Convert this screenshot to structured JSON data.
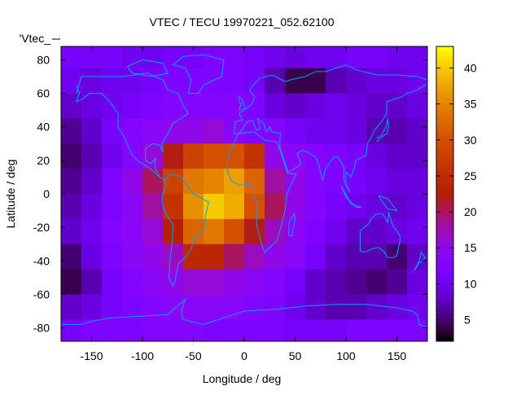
{
  "chart_data": {
    "type": "heatmap",
    "title": "VTEC / TECU 19970221_052.62100",
    "xlabel": "Longitude / deg",
    "ylabel": "Latitude / deg",
    "key_label": "'Vtec_",
    "xlim": [
      -180,
      180
    ],
    "ylim": [
      -88,
      88
    ],
    "xticks": [
      -150,
      -100,
      -50,
      0,
      50,
      100,
      150
    ],
    "yticks": [
      -80,
      -60,
      -40,
      -20,
      0,
      20,
      40,
      60,
      80
    ],
    "cbrange": [
      2,
      43
    ],
    "cbticks": [
      5,
      10,
      15,
      20,
      25,
      30,
      35,
      40
    ],
    "palette": "rgbformulae 7,5,15",
    "coastline_color": "#00a0ff",
    "grid_lon_step": 20,
    "grid_lat_step": 15,
    "grid_lon_start": -180,
    "grid_lat_top": 90,
    "values": [
      [
        11,
        11,
        11,
        10,
        10,
        11,
        11,
        12,
        12,
        11,
        10,
        9,
        10,
        10,
        11,
        11,
        10,
        10
      ],
      [
        10,
        9,
        10,
        10,
        11,
        12,
        12,
        12,
        12,
        11,
        7,
        4,
        4,
        7,
        8,
        9,
        9,
        10
      ],
      [
        8,
        9,
        10,
        11,
        12,
        13,
        13,
        13,
        13,
        12,
        9,
        8,
        9,
        10,
        9,
        8,
        8,
        9
      ],
      [
        6,
        8,
        11,
        13,
        14,
        15,
        15,
        16,
        14,
        13,
        13,
        11,
        10,
        10,
        9,
        7,
        7,
        8
      ],
      [
        5,
        7,
        10,
        13,
        16,
        22,
        28,
        30,
        30,
        26,
        15,
        14,
        13,
        12,
        11,
        9,
        8,
        8
      ],
      [
        6,
        8,
        12,
        15,
        20,
        28,
        34,
        35,
        37,
        32,
        18,
        15,
        13,
        12,
        11,
        10,
        9,
        9
      ],
      [
        7,
        9,
        12,
        14,
        18,
        26,
        36,
        40,
        38,
        30,
        20,
        15,
        13,
        11,
        10,
        9,
        8,
        9
      ],
      [
        8,
        10,
        13,
        14,
        16,
        23,
        32,
        34,
        30,
        22,
        17,
        14,
        12,
        10,
        8,
        8,
        9,
        10
      ],
      [
        5,
        9,
        12,
        14,
        15,
        17,
        24,
        24,
        20,
        17,
        15,
        14,
        11,
        8,
        7,
        7,
        5,
        8
      ],
      [
        4,
        7,
        11,
        13,
        14,
        15,
        16,
        16,
        15,
        14,
        13,
        11,
        8,
        7,
        6,
        5,
        6,
        9
      ],
      [
        8,
        9,
        11,
        12,
        13,
        14,
        14,
        14,
        14,
        13,
        12,
        10,
        8,
        7,
        7,
        8,
        9,
        10
      ],
      [
        11,
        12,
        12,
        12,
        13,
        13,
        13,
        12,
        12,
        12,
        12,
        11,
        11,
        11,
        12,
        12,
        12,
        12
      ]
    ],
    "coastlines": [
      [
        [
          -165,
          60
        ],
        [
          -160,
          70
        ],
        [
          -140,
          70
        ],
        [
          -120,
          70
        ],
        [
          -95,
          72
        ],
        [
          -80,
          68
        ],
        [
          -75,
          62
        ],
        [
          -65,
          60
        ],
        [
          -60,
          53
        ],
        [
          -55,
          48
        ],
        [
          -65,
          44
        ],
        [
          -70,
          42
        ],
        [
          -76,
          35
        ],
        [
          -81,
          30
        ],
        [
          -80,
          25
        ],
        [
          -83,
          29
        ],
        [
          -90,
          30
        ],
        [
          -97,
          27
        ],
        [
          -97,
          20
        ],
        [
          -92,
          18
        ],
        [
          -87,
          21
        ],
        [
          -88,
          16
        ],
        [
          -83,
          10
        ],
        [
          -78,
          8
        ],
        [
          -85,
          11
        ],
        [
          -92,
          15
        ],
        [
          -105,
          20
        ],
        [
          -110,
          23
        ],
        [
          -115,
          30
        ],
        [
          -118,
          34
        ],
        [
          -124,
          40
        ],
        [
          -124,
          48
        ],
        [
          -132,
          55
        ],
        [
          -140,
          60
        ],
        [
          -152,
          60
        ],
        [
          -158,
          57
        ],
        [
          -165,
          55
        ],
        [
          -162,
          60
        ],
        [
          -165,
          65
        ]
      ],
      [
        [
          -55,
          60
        ],
        [
          -45,
          60
        ],
        [
          -40,
          65
        ],
        [
          -22,
          70
        ],
        [
          -20,
          80
        ],
        [
          -40,
          83
        ],
        [
          -60,
          82
        ],
        [
          -70,
          77
        ],
        [
          -58,
          75
        ],
        [
          -52,
          68
        ],
        [
          -55,
          60
        ]
      ],
      [
        [
          -90,
          70
        ],
        [
          -75,
          72
        ],
        [
          -80,
          78
        ],
        [
          -100,
          80
        ],
        [
          -115,
          76
        ],
        [
          -110,
          72
        ],
        [
          -90,
          70
        ]
      ],
      [
        [
          -78,
          8
        ],
        [
          -72,
          12
        ],
        [
          -62,
          10
        ],
        [
          -50,
          0
        ],
        [
          -35,
          -5
        ],
        [
          -38,
          -13
        ],
        [
          -40,
          -22
        ],
        [
          -48,
          -26
        ],
        [
          -53,
          -34
        ],
        [
          -58,
          -38
        ],
        [
          -65,
          -42
        ],
        [
          -68,
          -52
        ],
        [
          -70,
          -55
        ],
        [
          -74,
          -50
        ],
        [
          -73,
          -40
        ],
        [
          -71,
          -30
        ],
        [
          -70,
          -18
        ],
        [
          -76,
          -13
        ],
        [
          -81,
          -5
        ],
        [
          -80,
          0
        ],
        [
          -77,
          5
        ],
        [
          -78,
          8
        ]
      ],
      [
        [
          -17,
          15
        ],
        [
          -16,
          22
        ],
        [
          -10,
          30
        ],
        [
          -6,
          36
        ],
        [
          10,
          37
        ],
        [
          20,
          32
        ],
        [
          32,
          31
        ],
        [
          34,
          28
        ],
        [
          43,
          12
        ],
        [
          51,
          12
        ],
        [
          42,
          0
        ],
        [
          40,
          -10
        ],
        [
          35,
          -22
        ],
        [
          32,
          -28
        ],
        [
          20,
          -35
        ],
        [
          17,
          -30
        ],
        [
          12,
          -18
        ],
        [
          13,
          -6
        ],
        [
          9,
          -1
        ],
        [
          9,
          4
        ],
        [
          5,
          6
        ],
        [
          -5,
          5
        ],
        [
          -13,
          8
        ],
        [
          -17,
          15
        ]
      ],
      [
        [
          -10,
          36
        ],
        [
          -9,
          43
        ],
        [
          -2,
          44
        ],
        [
          -5,
          48
        ],
        [
          2,
          51
        ],
        [
          8,
          54
        ],
        [
          10,
          58
        ],
        [
          5,
          62
        ],
        [
          15,
          69
        ],
        [
          28,
          71
        ],
        [
          40,
          67
        ],
        [
          45,
          68
        ],
        [
          60,
          70
        ],
        [
          70,
          73
        ],
        [
          80,
          73
        ],
        [
          100,
          77
        ],
        [
          110,
          74
        ],
        [
          130,
          71
        ],
        [
          150,
          71
        ],
        [
          170,
          70
        ],
        [
          180,
          68
        ]
      ],
      [
        [
          180,
          66
        ],
        [
          170,
          62
        ],
        [
          160,
          60
        ],
        [
          155,
          58
        ],
        [
          140,
          55
        ],
        [
          140,
          48
        ],
        [
          135,
          43
        ],
        [
          128,
          38
        ],
        [
          126,
          35
        ],
        [
          121,
          30
        ],
        [
          120,
          23
        ],
        [
          110,
          20
        ],
        [
          108,
          15
        ],
        [
          105,
          10
        ],
        [
          100,
          13
        ],
        [
          100,
          5
        ],
        [
          104,
          1
        ],
        [
          98,
          8
        ],
        [
          98,
          16
        ],
        [
          92,
          22
        ],
        [
          88,
          22
        ],
        [
          80,
          15
        ],
        [
          77,
          8
        ],
        [
          73,
          18
        ],
        [
          70,
          22
        ],
        [
          62,
          25
        ],
        [
          57,
          26
        ],
        [
          52,
          24
        ],
        [
          56,
          18
        ],
        [
          52,
          16
        ],
        [
          43,
          13
        ],
        [
          35,
          28
        ],
        [
          35,
          33
        ],
        [
          36,
          36
        ],
        [
          27,
          37
        ],
        [
          25,
          40
        ],
        [
          22,
          37
        ],
        [
          19,
          42
        ],
        [
          13,
          45
        ],
        [
          16,
          39
        ],
        [
          12,
          38
        ],
        [
          8,
          44
        ],
        [
          3,
          43
        ],
        [
          -5,
          36
        ],
        [
          -10,
          36
        ]
      ],
      [
        [
          114,
          -22
        ],
        [
          114,
          -34
        ],
        [
          118,
          -35
        ],
        [
          125,
          -33
        ],
        [
          132,
          -32
        ],
        [
          138,
          -35
        ],
        [
          141,
          -38
        ],
        [
          147,
          -38
        ],
        [
          150,
          -37
        ],
        [
          153,
          -28
        ],
        [
          153,
          -25
        ],
        [
          146,
          -19
        ],
        [
          142,
          -11
        ],
        [
          141,
          -17
        ],
        [
          136,
          -12
        ],
        [
          130,
          -12
        ],
        [
          125,
          -15
        ],
        [
          122,
          -18
        ],
        [
          114,
          -22
        ]
      ],
      [
        [
          -180,
          -78
        ],
        [
          -160,
          -78
        ],
        [
          -150,
          -76
        ],
        [
          -130,
          -74
        ],
        [
          -100,
          -73
        ],
        [
          -75,
          -72
        ],
        [
          -60,
          -64
        ],
        [
          -58,
          -63
        ],
        [
          -62,
          -70
        ],
        [
          -60,
          -75
        ],
        [
          -40,
          -78
        ],
        [
          -20,
          -74
        ],
        [
          0,
          -70
        ],
        [
          30,
          -69
        ],
        [
          60,
          -67
        ],
        [
          90,
          -66
        ],
        [
          120,
          -66
        ],
        [
          150,
          -68
        ],
        [
          165,
          -70
        ],
        [
          170,
          -72
        ],
        [
          172,
          -78
        ],
        [
          180,
          -80
        ]
      ],
      [
        [
          -5,
          50
        ],
        [
          1,
          51
        ],
        [
          -2,
          56
        ],
        [
          -5,
          58
        ],
        [
          -5,
          55
        ],
        [
          -3,
          54
        ],
        [
          -5,
          50
        ]
      ],
      [
        [
          130,
          31
        ],
        [
          135,
          34
        ],
        [
          140,
          36
        ],
        [
          142,
          40
        ],
        [
          141,
          45
        ],
        [
          140,
          41
        ],
        [
          135,
          35
        ],
        [
          130,
          33
        ]
      ],
      [
        [
          167,
          -46
        ],
        [
          172,
          -41
        ],
        [
          174,
          -41
        ],
        [
          178,
          -38
        ],
        [
          174,
          -35
        ],
        [
          172,
          -40
        ],
        [
          167,
          -46
        ]
      ],
      [
        [
          44,
          -25
        ],
        [
          47,
          -25
        ],
        [
          50,
          -15
        ],
        [
          49,
          -12
        ],
        [
          44,
          -17
        ],
        [
          44,
          -25
        ]
      ],
      [
        [
          95,
          5
        ],
        [
          105,
          -6
        ],
        [
          115,
          -8
        ],
        [
          110,
          -8
        ],
        [
          100,
          -2
        ],
        [
          95,
          5
        ]
      ],
      [
        [
          132,
          -1
        ],
        [
          141,
          -3
        ],
        [
          150,
          -10
        ],
        [
          141,
          -9
        ],
        [
          135,
          -4
        ],
        [
          132,
          -1
        ]
      ]
    ]
  }
}
